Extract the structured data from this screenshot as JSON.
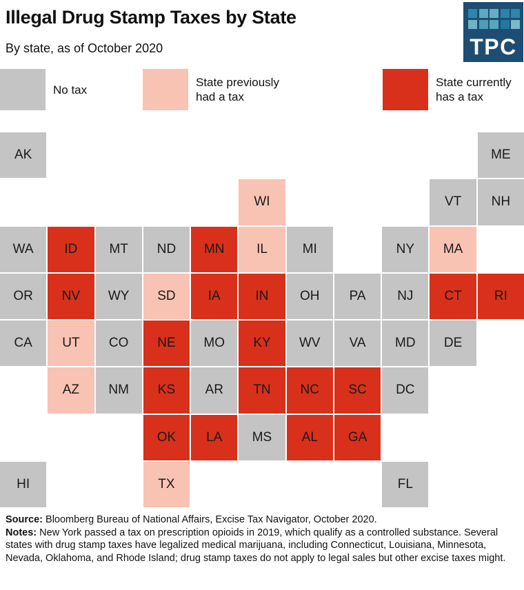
{
  "header": {
    "title": "Illegal Drug Stamp Taxes by State",
    "subtitle": "By state, as of October 2020"
  },
  "logo": {
    "text": "TPC",
    "bg_color": "#1d4d73",
    "tile_colors": [
      "#2e87aa",
      "#5fa9be",
      "#67aec1",
      "#2a84a8",
      "#2e87aa",
      "#6fb3c5",
      "#4d9eb7",
      "#5aa6bc",
      "#21789f",
      "#79b9c8"
    ]
  },
  "legend": {
    "items": [
      {
        "status": "none",
        "label": "No tax",
        "color": "#c4c4c4"
      },
      {
        "status": "previous",
        "label": "State previously had a tax",
        "color": "#f9c3b4"
      },
      {
        "status": "current",
        "label": "State currently has a tax",
        "color": "#d8301b"
      }
    ]
  },
  "chart_data": {
    "type": "heatmap",
    "subtype": "us_state_tile_grid_cartogram",
    "title": "Illegal Drug Stamp Taxes by State",
    "subtitle": "By state, as of October 2020",
    "grid": {
      "rows": 8,
      "cols": 11
    },
    "status_labels": {
      "none": "No tax",
      "previous": "State previously had a tax",
      "current": "State currently has a tax"
    },
    "tiles": [
      {
        "abbr": "AK",
        "row": 1,
        "col": 1,
        "status": "none"
      },
      {
        "abbr": "ME",
        "row": 1,
        "col": 11,
        "status": "none"
      },
      {
        "abbr": "WI",
        "row": 2,
        "col": 6,
        "status": "previous"
      },
      {
        "abbr": "VT",
        "row": 2,
        "col": 10,
        "status": "none"
      },
      {
        "abbr": "NH",
        "row": 2,
        "col": 11,
        "status": "none"
      },
      {
        "abbr": "WA",
        "row": 3,
        "col": 1,
        "status": "none"
      },
      {
        "abbr": "ID",
        "row": 3,
        "col": 2,
        "status": "current"
      },
      {
        "abbr": "MT",
        "row": 3,
        "col": 3,
        "status": "none"
      },
      {
        "abbr": "ND",
        "row": 3,
        "col": 4,
        "status": "none"
      },
      {
        "abbr": "MN",
        "row": 3,
        "col": 5,
        "status": "current"
      },
      {
        "abbr": "IL",
        "row": 3,
        "col": 6,
        "status": "previous"
      },
      {
        "abbr": "MI",
        "row": 3,
        "col": 7,
        "status": "none"
      },
      {
        "abbr": "NY",
        "row": 3,
        "col": 9,
        "status": "none"
      },
      {
        "abbr": "MA",
        "row": 3,
        "col": 10,
        "status": "previous"
      },
      {
        "abbr": "OR",
        "row": 4,
        "col": 1,
        "status": "none"
      },
      {
        "abbr": "NV",
        "row": 4,
        "col": 2,
        "status": "current"
      },
      {
        "abbr": "WY",
        "row": 4,
        "col": 3,
        "status": "none"
      },
      {
        "abbr": "SD",
        "row": 4,
        "col": 4,
        "status": "previous"
      },
      {
        "abbr": "IA",
        "row": 4,
        "col": 5,
        "status": "current"
      },
      {
        "abbr": "IN",
        "row": 4,
        "col": 6,
        "status": "current"
      },
      {
        "abbr": "OH",
        "row": 4,
        "col": 7,
        "status": "none"
      },
      {
        "abbr": "PA",
        "row": 4,
        "col": 8,
        "status": "none"
      },
      {
        "abbr": "NJ",
        "row": 4,
        "col": 9,
        "status": "none"
      },
      {
        "abbr": "CT",
        "row": 4,
        "col": 10,
        "status": "current"
      },
      {
        "abbr": "RI",
        "row": 4,
        "col": 11,
        "status": "current"
      },
      {
        "abbr": "CA",
        "row": 5,
        "col": 1,
        "status": "none"
      },
      {
        "abbr": "UT",
        "row": 5,
        "col": 2,
        "status": "previous"
      },
      {
        "abbr": "CO",
        "row": 5,
        "col": 3,
        "status": "none"
      },
      {
        "abbr": "NE",
        "row": 5,
        "col": 4,
        "status": "current"
      },
      {
        "abbr": "MO",
        "row": 5,
        "col": 5,
        "status": "none"
      },
      {
        "abbr": "KY",
        "row": 5,
        "col": 6,
        "status": "current"
      },
      {
        "abbr": "WV",
        "row": 5,
        "col": 7,
        "status": "none"
      },
      {
        "abbr": "VA",
        "row": 5,
        "col": 8,
        "status": "none"
      },
      {
        "abbr": "MD",
        "row": 5,
        "col": 9,
        "status": "none"
      },
      {
        "abbr": "DE",
        "row": 5,
        "col": 10,
        "status": "none"
      },
      {
        "abbr": "AZ",
        "row": 6,
        "col": 2,
        "status": "previous"
      },
      {
        "abbr": "NM",
        "row": 6,
        "col": 3,
        "status": "none"
      },
      {
        "abbr": "KS",
        "row": 6,
        "col": 4,
        "status": "current"
      },
      {
        "abbr": "AR",
        "row": 6,
        "col": 5,
        "status": "none"
      },
      {
        "abbr": "TN",
        "row": 6,
        "col": 6,
        "status": "current"
      },
      {
        "abbr": "NC",
        "row": 6,
        "col": 7,
        "status": "current"
      },
      {
        "abbr": "SC",
        "row": 6,
        "col": 8,
        "status": "current"
      },
      {
        "abbr": "DC",
        "row": 6,
        "col": 9,
        "status": "none"
      },
      {
        "abbr": "OK",
        "row": 7,
        "col": 4,
        "status": "current"
      },
      {
        "abbr": "LA",
        "row": 7,
        "col": 5,
        "status": "current"
      },
      {
        "abbr": "MS",
        "row": 7,
        "col": 6,
        "status": "none"
      },
      {
        "abbr": "AL",
        "row": 7,
        "col": 7,
        "status": "current"
      },
      {
        "abbr": "GA",
        "row": 7,
        "col": 8,
        "status": "current"
      },
      {
        "abbr": "HI",
        "row": 8,
        "col": 1,
        "status": "none"
      },
      {
        "abbr": "TX",
        "row": 8,
        "col": 4,
        "status": "previous"
      },
      {
        "abbr": "FL",
        "row": 8,
        "col": 9,
        "status": "none"
      }
    ]
  },
  "footer": {
    "source_label": "Source:",
    "source_text": "Bloomberg Bureau of National Affairs, Excise Tax Navigator, October 2020.",
    "notes_label": "Notes:",
    "notes_text": "New York passed a tax on prescription opioids in 2019, which qualify as a controlled substance. Several states with drug stamp taxes have legalized medical marijuana, including Connecticut, Louisiana, Minnesota, Nevada, Oklahoma, and Rhode Island; drug stamp taxes do not apply to legal sales but other excise taxes might."
  }
}
